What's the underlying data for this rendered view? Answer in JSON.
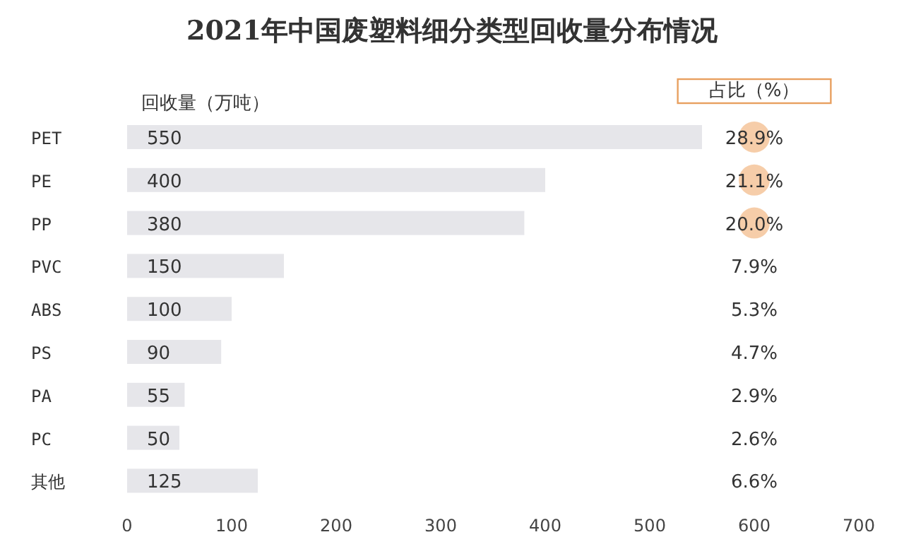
{
  "chart_data": {
    "type": "bar",
    "orientation": "horizontal",
    "title": "2021年中国废塑料细分类型回收量分布情况",
    "xlabel": "回收量（万吨）",
    "categories": [
      "PET",
      "PE",
      "PP",
      "PVC",
      "ABS",
      "PS",
      "PA",
      "PC",
      "其他"
    ],
    "values": [
      550,
      400,
      380,
      150,
      100,
      90,
      55,
      50,
      125
    ],
    "color": "#e6e6ea",
    "data_labels": true,
    "grid": false,
    "xlim": [
      0,
      700
    ],
    "xticks": [
      0,
      100,
      200,
      300,
      400,
      500,
      600,
      700
    ],
    "annotations": [
      "占比（%）",
      "28.9%",
      "21.1%",
      "20.0%",
      "7.9%",
      "5.3%",
      "4.7%",
      "2.9%",
      "2.6%",
      "6.6%"
    ]
  }
}
